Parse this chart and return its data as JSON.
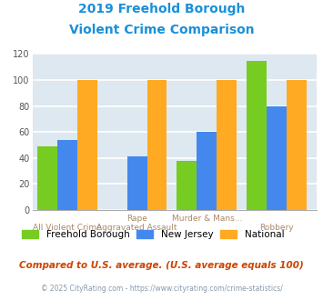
{
  "title_line1": "2019 Freehold Borough",
  "title_line2": "Violent Crime Comparison",
  "title_color": "#1a90d9",
  "series_labels": [
    "Freehold Borough",
    "New Jersey",
    "National"
  ],
  "series_colors": [
    "#77cc22",
    "#4488ee",
    "#ffaa22"
  ],
  "freehold_values": [
    49,
    null,
    38,
    115
  ],
  "nj_values": [
    54,
    41,
    60,
    80
  ],
  "national_values": [
    100,
    100,
    100,
    100
  ],
  "cat_labels_top": [
    "",
    "Rape",
    "Murder & Mans...",
    ""
  ],
  "cat_labels_bot": [
    "All Violent Crime",
    "Aggravated Assault",
    "",
    "Robbery"
  ],
  "ylim": [
    0,
    120
  ],
  "yticks": [
    0,
    20,
    40,
    60,
    80,
    100,
    120
  ],
  "background_color": "#dde8f0",
  "grid_color": "#ffffff",
  "footnote": "Compared to U.S. average. (U.S. average equals 100)",
  "footnote_color": "#cc4400",
  "copyright": "© 2025 CityRating.com - https://www.cityrating.com/crime-statistics/",
  "copyright_color": "#8899aa"
}
